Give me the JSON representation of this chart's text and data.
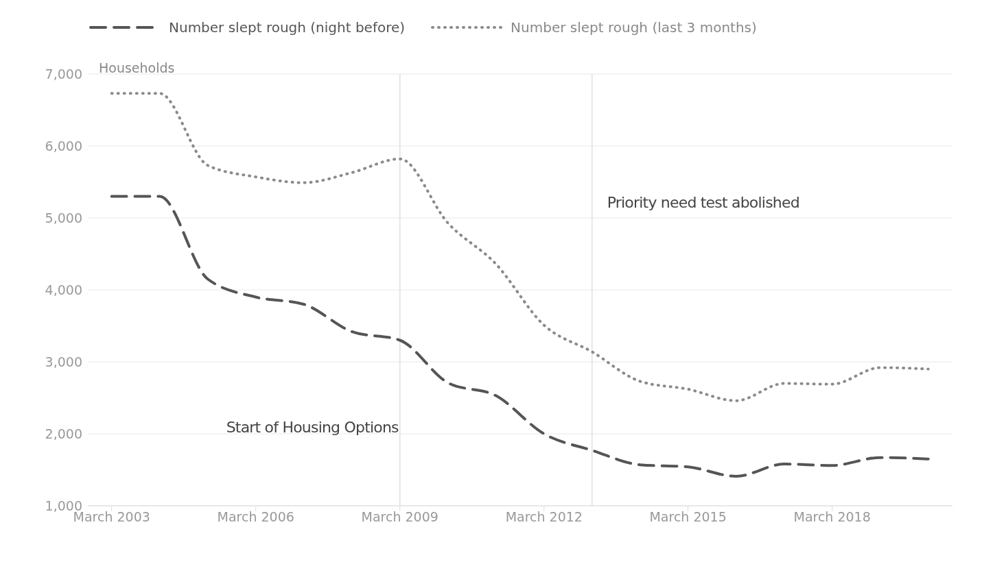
{
  "chart_data": {
    "type": "line",
    "ylabel": "Households",
    "x": [
      "2003-03",
      "2004-03",
      "2005-03",
      "2006-03",
      "2007-03",
      "2008-03",
      "2009-03",
      "2010-03",
      "2011-03",
      "2012-03",
      "2013-03",
      "2014-03",
      "2015-03",
      "2016-03",
      "2017-03",
      "2018-03",
      "2019-03",
      "2020-03"
    ],
    "series": [
      {
        "name": "Number slept rough (night before)",
        "color": "#555555",
        "line_style": "dashed",
        "values": [
          5300,
          5300,
          4150,
          3900,
          3800,
          3420,
          3300,
          2710,
          2530,
          2000,
          1770,
          1570,
          1540,
          1410,
          1580,
          1560,
          1670,
          1650
        ]
      },
      {
        "name": "Number slept rough (last 3 months)",
        "color": "#8a8a8a",
        "line_style": "dotted",
        "values": [
          6730,
          6730,
          5730,
          5570,
          5490,
          5630,
          5820,
          4930,
          4360,
          3510,
          3140,
          2730,
          2620,
          2460,
          2700,
          2690,
          2920,
          2900
        ]
      }
    ],
    "xlim": [
      "2002-09",
      "2020-09"
    ],
    "xticks": [
      {
        "value": "2003-03",
        "label": "March 2003"
      },
      {
        "value": "2006-03",
        "label": "March 2006"
      },
      {
        "value": "2009-03",
        "label": "March 2009"
      },
      {
        "value": "2012-03",
        "label": "March 2012"
      },
      {
        "value": "2015-03",
        "label": "March 2015"
      },
      {
        "value": "2018-03",
        "label": "March 2018"
      }
    ],
    "ylim": [
      1000,
      7000
    ],
    "yticks": [
      {
        "value": 1000,
        "label": "1,000"
      },
      {
        "value": 2000,
        "label": "2,000"
      },
      {
        "value": 3000,
        "label": "3,000"
      },
      {
        "value": 4000,
        "label": "4,000"
      },
      {
        "value": 5000,
        "label": "5,000"
      },
      {
        "value": 6000,
        "label": "6,000"
      },
      {
        "value": 7000,
        "label": "7,000"
      }
    ],
    "ref_lines": [
      {
        "axis": "x",
        "value": "2009-03",
        "label": "Start of Housing Options",
        "color": "#e6e6e6"
      },
      {
        "axis": "x",
        "value": "2013-03",
        "label": "Priority need test abolished",
        "color": "#e6e6e6"
      }
    ],
    "grid": "y",
    "legend": "top left",
    "marker": "none"
  }
}
